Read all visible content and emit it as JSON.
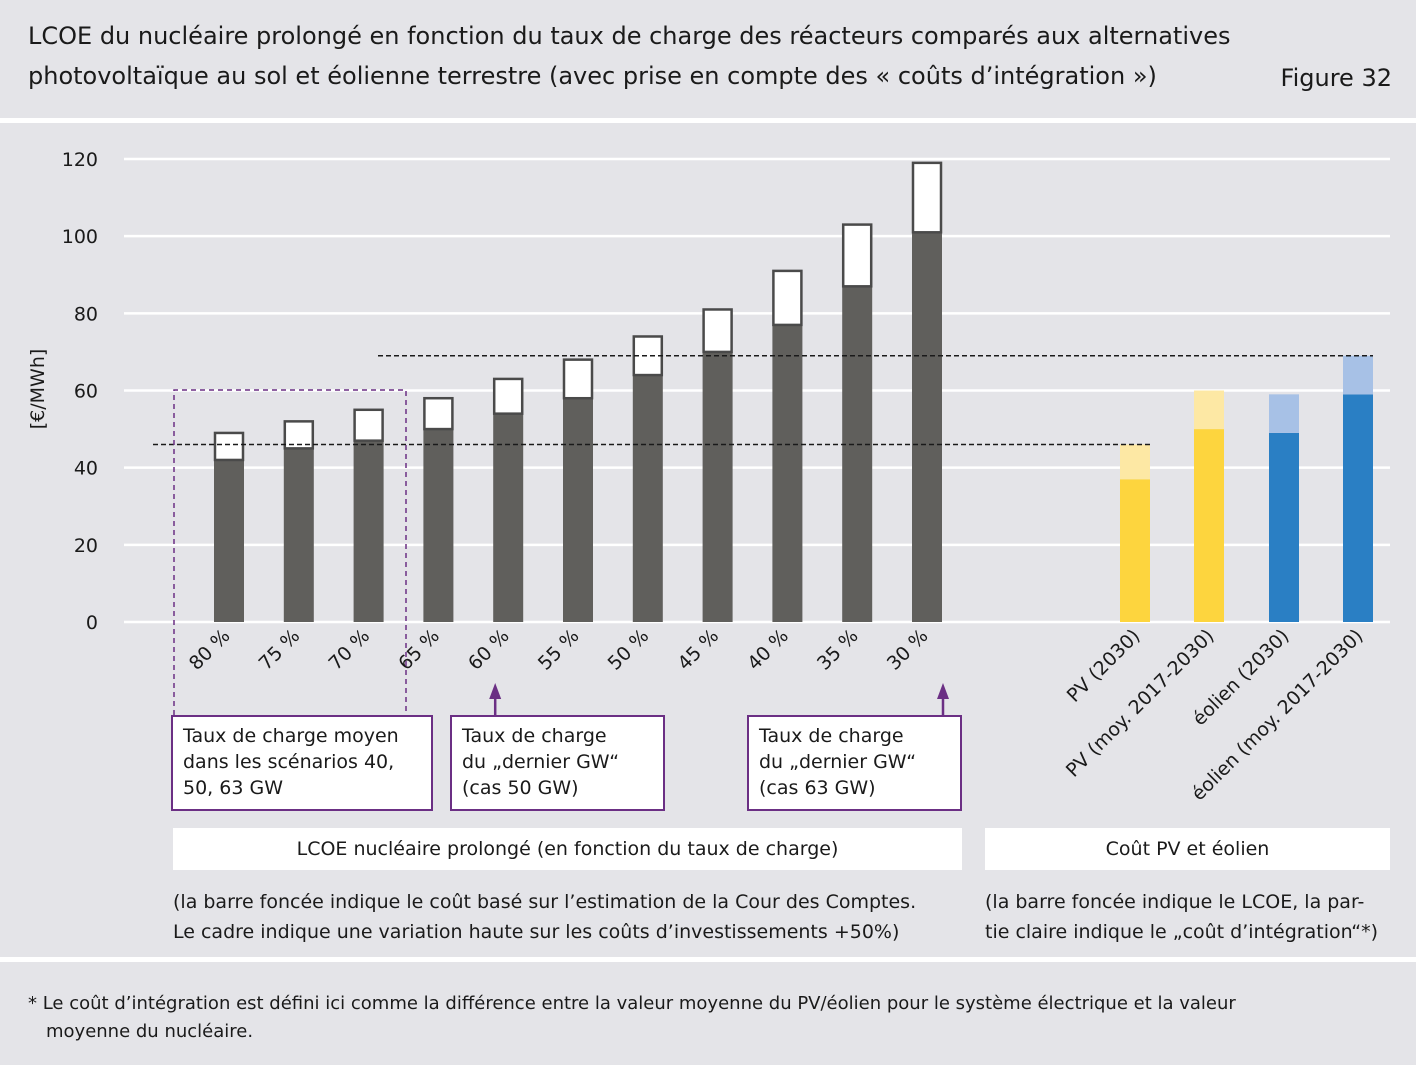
{
  "header": {
    "title_line1": "LCOE du nucléaire prolongé en fonction du taux de charge des réacteurs comparés aux alternatives",
    "title_line2": "photovoltaïque au sol et éolienne terrestre (avec prise en compte des « coûts d’intégration »)",
    "figure_label": "Figure 32"
  },
  "chart_data": {
    "type": "bar",
    "ylabel": "[€/MWh]",
    "ylim": [
      0,
      120
    ],
    "yticks": [
      0,
      20,
      40,
      60,
      80,
      100,
      120
    ],
    "grid": true,
    "nuclear": {
      "categories": [
        "80 %",
        "75 %",
        "70 %",
        "65 %",
        "60 %",
        "55 %",
        "50 %",
        "45 %",
        "40 %",
        "35 %",
        "30 %"
      ],
      "series": [
        {
          "name": "coût basé sur l’estimation de la Cour des Comptes",
          "values": [
            42,
            45,
            47,
            50,
            54,
            58,
            64,
            70,
            77,
            87,
            101
          ]
        },
        {
          "name": "variation haute coûts d’investissements +50%",
          "values": [
            49,
            52,
            55,
            58,
            63,
            68,
            74,
            81,
            91,
            103,
            119
          ]
        }
      ],
      "dark_color": "#605f5c",
      "frame_color": "#4a4a4a"
    },
    "renewables": {
      "categories": [
        "PV (2030)",
        "PV (moy. 2017-2030)",
        "éolien (2030)",
        "éolien (moy. 2017-2030)"
      ],
      "series": [
        {
          "name": "LCOE",
          "values": [
            37,
            50,
            49,
            59
          ]
        },
        {
          "name": "coût d’intégration",
          "values": [
            9,
            10,
            10,
            10
          ]
        }
      ],
      "dark_colors": [
        "#fdd53e",
        "#fdd53e",
        "#2a7fc4",
        "#2a7fc4"
      ],
      "light_colors": [
        "#fde8a4",
        "#fde8a4",
        "#a7c1e6",
        "#a7c1e6"
      ]
    },
    "reference_lines": [
      46,
      69
    ]
  },
  "annotations": {
    "box1": [
      "Taux de charge moyen",
      "dans les scénarios 40,",
      "50, 63 GW"
    ],
    "box2": [
      "Taux de charge",
      "du „dernier GW“",
      "(cas 50 GW)"
    ],
    "box3": [
      "Taux de charge",
      "du „dernier GW“",
      "(cas 63 GW)"
    ],
    "accent_color": "#6b2f84"
  },
  "sections": {
    "nuclear_label": "LCOE nucléaire prolongé (en fonction du taux de charge)",
    "nuclear_desc": [
      "(la barre foncée indique le coût basé sur l’estimation de la Cour des Comptes.",
      "Le cadre indique une variation haute sur les coûts d’investissements +50%)"
    ],
    "renewables_label": "Coût PV et éolien",
    "renewables_desc": [
      "(la barre foncée indique le LCOE, la par-",
      "tie claire indique le „coût d’intégration“*)"
    ]
  },
  "footnote": {
    "line1": "* Le coût d’intégration est défini ici comme la différence entre la valeur moyenne du PV/éolien pour le système électrique et la valeur",
    "line2": "moyenne du nucléaire."
  }
}
